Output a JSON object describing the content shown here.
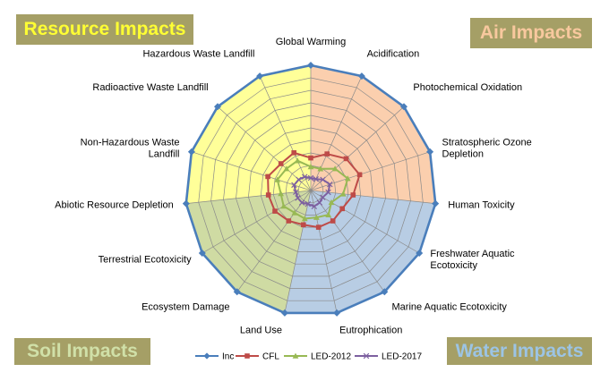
{
  "regions": {
    "resource": "Resource Impacts",
    "air": "Air Impacts",
    "soil": "Soil Impacts",
    "water": "Water Impacts"
  },
  "colors": {
    "air_fill": "#fbcfae",
    "water_fill": "#b8cde4",
    "soil_fill": "#cfdba3",
    "resource_fill": "#ffff99",
    "grid": "#8a8a8a",
    "region_box_bg": "#a59f66"
  },
  "chart_data": {
    "type": "radar",
    "categories": [
      "Global Warming",
      "Acidification",
      "Photochemical Oxidation",
      "Stratospheric Ozone Depletion",
      "Human Toxicity",
      "Freshwater Aquatic Ecotoxicity",
      "Marine Aquatic Ecotoxicity",
      "Eutrophication",
      "Land Use",
      "Ecosystem Damage",
      "Terrestrial Ecotoxicity",
      "Abiotic Resource Depletion",
      "Non-Hazardous Waste Landfill",
      "Radioactive Waste Landfill",
      "Hazardous Waste Landfill"
    ],
    "category_lines": [
      [
        "Global Warming"
      ],
      [
        "Acidification"
      ],
      [
        "Photochemical Oxidation"
      ],
      [
        "Stratospheric Ozone",
        "Depletion"
      ],
      [
        "Human Toxicity"
      ],
      [
        "Freshwater Aquatic",
        "Ecotoxicity"
      ],
      [
        "Marine Aquatic Ecotoxicity"
      ],
      [
        "Eutrophication"
      ],
      [
        "Land Use"
      ],
      [
        "Ecosystem Damage"
      ],
      [
        "Terrestrial Ecotoxicity"
      ],
      [
        "Abiotic Resource Depletion"
      ],
      [
        "Non-Hazardous Waste",
        "Landfill"
      ],
      [
        "Radioactive Waste Landfill"
      ],
      [
        "Hazardous Waste Landfill"
      ]
    ],
    "rmax": 1,
    "rings": 10,
    "grid": true,
    "legend_position": "bottom",
    "series": [
      {
        "name": "Inc",
        "color": "#4a7ebb",
        "marker": "diamond",
        "values": [
          1,
          1,
          1,
          1,
          1,
          1,
          1,
          1,
          1,
          1,
          1,
          1,
          1,
          1,
          1
        ]
      },
      {
        "name": "CFL",
        "color": "#be4b48",
        "marker": "square",
        "values": [
          0.26,
          0.32,
          0.38,
          0.41,
          0.34,
          0.29,
          0.3,
          0.3,
          0.28,
          0.3,
          0.33,
          0.34,
          0.36,
          0.32,
          0.33
        ]
      },
      {
        "name": "LED-2012",
        "color": "#98b954",
        "marker": "triangle",
        "values": [
          0.19,
          0.19,
          0.26,
          0.31,
          0.26,
          0.19,
          0.24,
          0.22,
          0.23,
          0.22,
          0.25,
          0.24,
          0.28,
          0.26,
          0.26
        ]
      },
      {
        "name": "LED-2017",
        "color": "#7d60a0",
        "marker": "x",
        "values": [
          0.1,
          0.1,
          0.13,
          0.16,
          0.14,
          0.11,
          0.12,
          0.13,
          0.11,
          0.12,
          0.12,
          0.12,
          0.14,
          0.13,
          0.12
        ]
      }
    ]
  }
}
